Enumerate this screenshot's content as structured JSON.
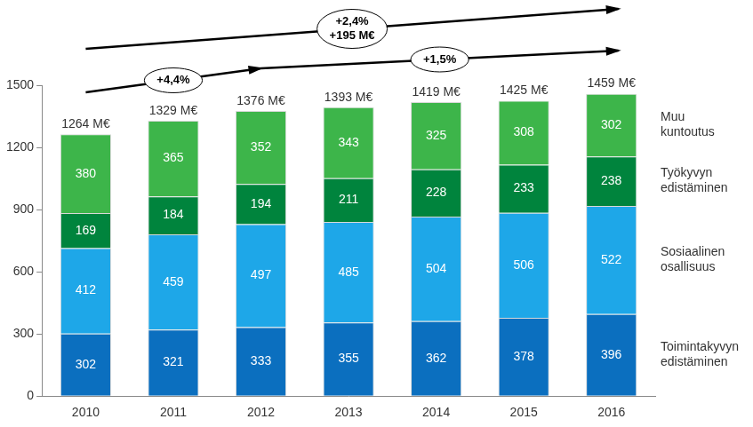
{
  "chart_data": {
    "type": "bar",
    "stacked": true,
    "data_labels": true,
    "grid": false,
    "categories": [
      "2010",
      "2011",
      "2012",
      "2013",
      "2014",
      "2015",
      "2016"
    ],
    "series": [
      {
        "name": "Toimintakyvyn edistäminen",
        "color": "#0b6fbf",
        "values": [
          302,
          321,
          333,
          355,
          362,
          378,
          396
        ]
      },
      {
        "name": "Sosiaalinen osallisuus",
        "color": "#1ea7e8",
        "values": [
          412,
          459,
          497,
          485,
          504,
          506,
          522
        ]
      },
      {
        "name": "Työkyvyn edistäminen",
        "color": "#00843d",
        "values": [
          169,
          184,
          194,
          211,
          228,
          233,
          238
        ]
      },
      {
        "name": "Muu kuntoutus",
        "color": "#3db54a",
        "values": [
          380,
          365,
          352,
          343,
          325,
          308,
          302
        ]
      }
    ],
    "totals": {
      "values": [
        1264,
        1329,
        1376,
        1393,
        1419,
        1425,
        1459
      ],
      "value_labels": [
        "1264 M€",
        "1329 M€",
        "1376 M€",
        "1393 M€",
        "1419 M€",
        "1425 M€",
        "1459 M€"
      ]
    },
    "annotations": [
      {
        "labels": [
          "+2,4%",
          "+195 M€"
        ],
        "from": "2010",
        "to": "2016"
      },
      {
        "labels": [
          "+4,4%"
        ],
        "from": "2010",
        "to": "2012"
      },
      {
        "labels": [
          "+1,5%"
        ],
        "from": "2012",
        "to": "2016"
      }
    ],
    "ylim": [
      0,
      1500
    ],
    "yticks": [
      0,
      300,
      600,
      900,
      1200,
      1500
    ]
  }
}
